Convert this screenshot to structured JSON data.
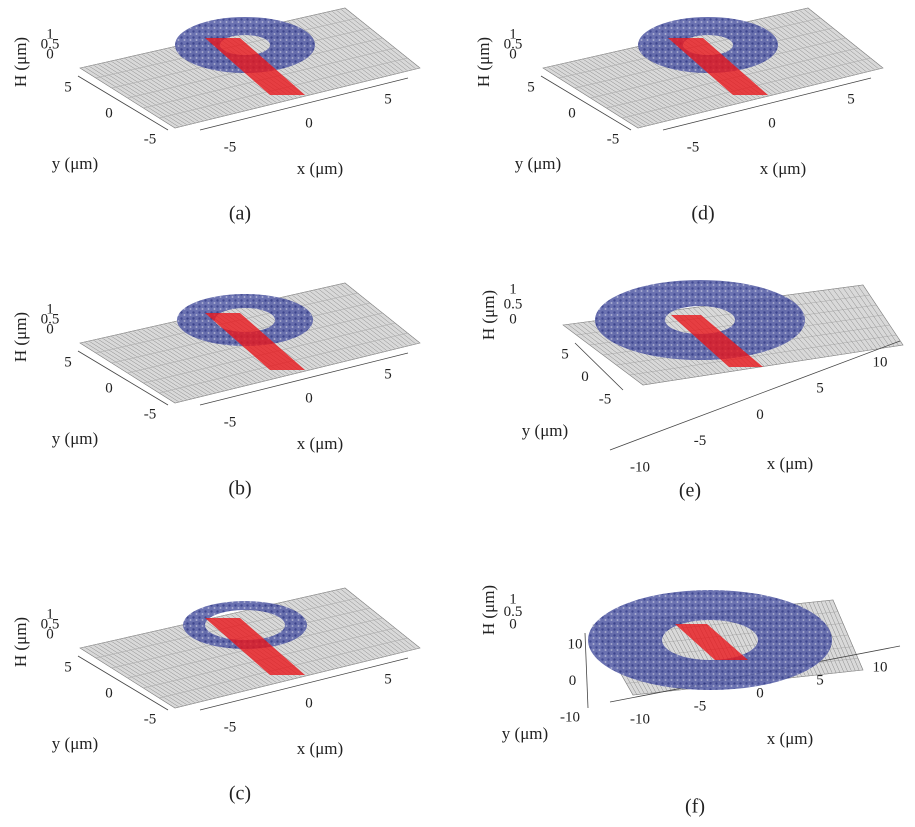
{
  "panels": [
    {
      "label": "(a)",
      "z_axis": "H (μm)",
      "y_axis": "y (μm)",
      "x_axis": "x (μm)",
      "zticks": [
        0,
        0.5,
        1
      ],
      "yticks": [
        5,
        0,
        -5
      ],
      "xticks": [
        -5,
        0,
        5
      ]
    },
    {
      "label": "(b)",
      "z_axis": "H (μm)",
      "y_axis": "y (μm)",
      "x_axis": "x (μm)",
      "zticks": [
        0,
        0.5,
        1
      ],
      "yticks": [
        5,
        0,
        -5
      ],
      "xticks": [
        -5,
        0,
        5
      ]
    },
    {
      "label": "(c)",
      "z_axis": "H (μm)",
      "y_axis": "y (μm)",
      "x_axis": "x (μm)",
      "zticks": [
        0,
        0.5,
        1
      ],
      "yticks": [
        5,
        0,
        -5
      ],
      "xticks": [
        -5,
        0,
        5
      ]
    },
    {
      "label": "(d)",
      "z_axis": "H (μm)",
      "y_axis": "y (μm)",
      "x_axis": "x (μm)",
      "zticks": [
        0,
        0.5,
        1
      ],
      "yticks": [
        5,
        0,
        -5
      ],
      "xticks": [
        -5,
        0,
        5
      ]
    },
    {
      "label": "(e)",
      "z_axis": "H (μm)",
      "y_axis": "y (μm)",
      "x_axis": "x (μm)",
      "zticks": [
        0,
        0.5,
        1
      ],
      "yticks": [
        5,
        0,
        -5
      ],
      "xticks": [
        -10,
        -5,
        0,
        5,
        10
      ]
    },
    {
      "label": "(f)",
      "z_axis": "H (μm)",
      "y_axis": "y (μm)",
      "x_axis": "x (μm)",
      "zticks": [
        0,
        0.5,
        1
      ],
      "yticks": [
        10,
        0,
        -10
      ],
      "xticks": [
        -10,
        -5,
        0,
        5,
        10
      ]
    }
  ]
}
